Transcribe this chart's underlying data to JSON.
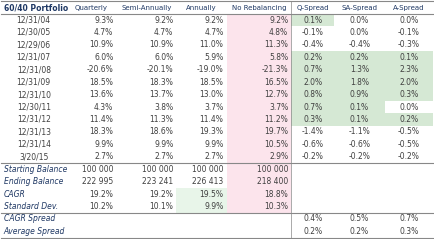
{
  "title": "60/40 Portfolio",
  "columns": [
    "Quarterly",
    "Semi-Annually",
    "Annually",
    "No Rebalancing",
    "Q-Spread",
    "SA-Spread",
    "A-Spread"
  ],
  "rows": [
    [
      "12/31/04",
      "9.3%",
      "9.2%",
      "9.2%",
      "9.2%",
      "0.1%",
      "0.0%",
      "0.0%"
    ],
    [
      "12/30/05",
      "4.7%",
      "4.7%",
      "4.7%",
      "4.8%",
      "-0.1%",
      "0.0%",
      "-0.1%"
    ],
    [
      "12/29/06",
      "10.9%",
      "10.9%",
      "11.0%",
      "11.3%",
      "-0.4%",
      "-0.4%",
      "-0.3%"
    ],
    [
      "12/31/07",
      "6.0%",
      "6.0%",
      "5.9%",
      "5.8%",
      "0.2%",
      "0.2%",
      "0.1%"
    ],
    [
      "12/31/08",
      "-20.6%",
      "-20.1%",
      "-19.0%",
      "-21.3%",
      "0.7%",
      "1.3%",
      "2.3%"
    ],
    [
      "12/31/09",
      "18.5%",
      "18.3%",
      "18.5%",
      "16.5%",
      "2.0%",
      "1.8%",
      "2.0%"
    ],
    [
      "12/31/10",
      "13.6%",
      "13.7%",
      "13.0%",
      "12.7%",
      "0.8%",
      "0.9%",
      "0.3%"
    ],
    [
      "12/30/11",
      "4.3%",
      "3.8%",
      "3.7%",
      "3.7%",
      "0.7%",
      "0.1%",
      "0.0%"
    ],
    [
      "12/31/12",
      "11.4%",
      "11.3%",
      "11.4%",
      "11.2%",
      "0.3%",
      "0.1%",
      "0.2%"
    ],
    [
      "12/31/13",
      "18.3%",
      "18.6%",
      "19.3%",
      "19.7%",
      "-1.4%",
      "-1.1%",
      "-0.5%"
    ],
    [
      "12/31/14",
      "9.9%",
      "9.9%",
      "9.9%",
      "10.5%",
      "-0.6%",
      "-0.6%",
      "-0.5%"
    ],
    [
      "3/20/15",
      "2.7%",
      "2.7%",
      "2.7%",
      "2.9%",
      "-0.2%",
      "-0.2%",
      "-0.2%"
    ]
  ],
  "summary_rows": [
    [
      "Starting Balance",
      "100 000",
      "100 000",
      "100 000",
      "100 000",
      "",
      "",
      ""
    ],
    [
      "Ending Balance",
      "222 995",
      "223 241",
      "226 413",
      "218 400",
      "",
      "",
      ""
    ],
    [
      "CAGR",
      "19.2%",
      "19.2%",
      "19.5%",
      "18.8%",
      "",
      "",
      ""
    ],
    [
      "Standard Dev.",
      "10.2%",
      "10.1%",
      "9.9%",
      "10.3%",
      "",
      "",
      ""
    ]
  ],
  "footer_rows": [
    [
      "CAGR Spread",
      "",
      "",
      "",
      "",
      "0.4%",
      "0.5%",
      "0.7%"
    ],
    [
      "Average Spread",
      "",
      "",
      "",
      "",
      "0.2%",
      "0.2%",
      "0.3%"
    ]
  ],
  "pink_bg": "#FCE4EC",
  "green_bg": "#E8F5E9",
  "light_green": "#D5E8D4",
  "header_color": "#1F3864",
  "data_color": "#404040",
  "sep_color": "#888888"
}
